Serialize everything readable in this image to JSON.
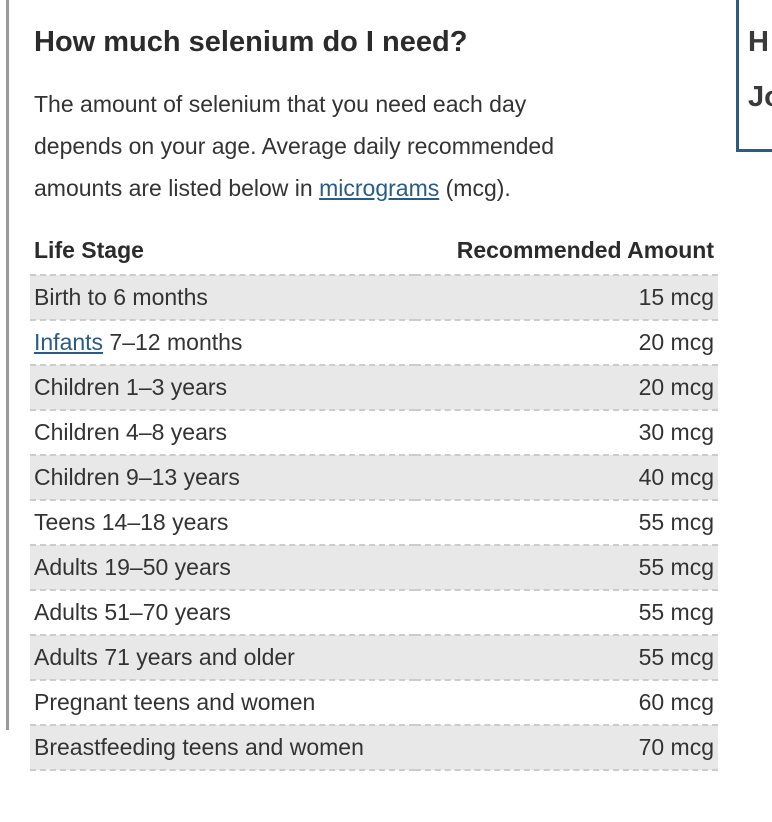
{
  "section": {
    "heading": "How much selenium do I need?",
    "paragraph": {
      "text_before_link": "The amount of selenium that you need each day\ndepends on your age. Average daily recommended\namounts are listed below in ",
      "link_text": "micrograms",
      "text_after_link": " (mcg)."
    }
  },
  "table": {
    "headers": [
      "Life Stage",
      "Recommended Amount"
    ],
    "rows": [
      {
        "link": null,
        "text": "Birth to 6 months",
        "amount": "15 mcg"
      },
      {
        "link": "Infants",
        "text": " 7–12 months",
        "amount": "20 mcg"
      },
      {
        "link": null,
        "text": "Children 1–3 years",
        "amount": "20 mcg"
      },
      {
        "link": null,
        "text": "Children 4–8 years",
        "amount": "30 mcg"
      },
      {
        "link": null,
        "text": "Children 9–13 years",
        "amount": "40 mcg"
      },
      {
        "link": null,
        "text": "Teens 14–18 years",
        "amount": "55 mcg"
      },
      {
        "link": null,
        "text": "Adults 19–50 years",
        "amount": "55 mcg"
      },
      {
        "link": null,
        "text": "Adults 51–70 years",
        "amount": "55 mcg"
      },
      {
        "link": null,
        "text": "Adults 71 years and older",
        "amount": "55 mcg"
      },
      {
        "link": null,
        "text": "Pregnant teens and women",
        "amount": "60 mcg"
      },
      {
        "link": null,
        "text": "Breastfeeding teens and women",
        "amount": "70 mcg"
      }
    ]
  },
  "side_box": {
    "line1": "H",
    "line2": "Jo"
  },
  "colors": {
    "link_blue": "#2a5b84",
    "row_shade_gray": "#e8e8e8",
    "dashed_border_gray": "#cccccc",
    "side_box_border_navy": "#2e5a87",
    "left_rule_gray": "#9b9b9b",
    "text_dark": "#2b2b2b"
  }
}
